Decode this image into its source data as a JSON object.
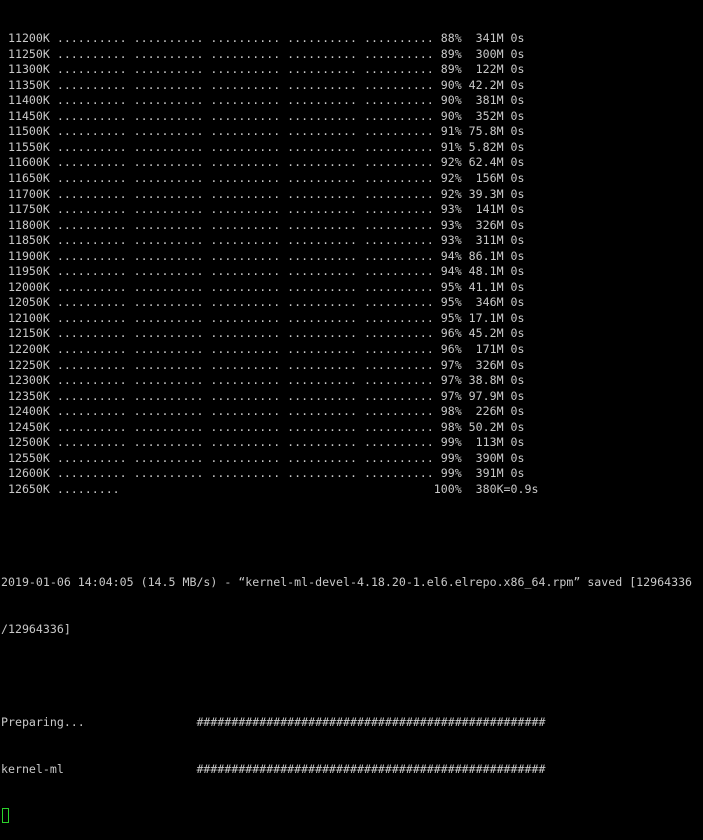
{
  "terminal": {
    "text_color": "#c9c9c9",
    "background": "#000000",
    "cursor_color": "#2bd22b",
    "progress_lines": [
      " 11200K .......... .......... .......... .......... .......... 88%  341M 0s",
      " 11250K .......... .......... .......... .......... .......... 89%  300M 0s",
      " 11300K .......... .......... .......... .......... .......... 89%  122M 0s",
      " 11350K .......... .......... .......... .......... .......... 90% 42.2M 0s",
      " 11400K .......... .......... .......... .......... .......... 90%  381M 0s",
      " 11450K .......... .......... .......... .......... .......... 90%  352M 0s",
      " 11500K .......... .......... .......... .......... .......... 91% 75.8M 0s",
      " 11550K .......... .......... .......... .......... .......... 91% 5.82M 0s",
      " 11600K .......... .......... .......... .......... .......... 92% 62.4M 0s",
      " 11650K .......... .......... .......... .......... .......... 92%  156M 0s",
      " 11700K .......... .......... .......... .......... .......... 92% 39.3M 0s",
      " 11750K .......... .......... .......... .......... .......... 93%  141M 0s",
      " 11800K .......... .......... .......... .......... .......... 93%  326M 0s",
      " 11850K .......... .......... .......... .......... .......... 93%  311M 0s",
      " 11900K .......... .......... .......... .......... .......... 94% 86.1M 0s",
      " 11950K .......... .......... .......... .......... .......... 94% 48.1M 0s",
      " 12000K .......... .......... .......... .......... .......... 95% 41.1M 0s",
      " 12050K .......... .......... .......... .......... .......... 95%  346M 0s",
      " 12100K .......... .......... .......... .......... .......... 95% 17.1M 0s",
      " 12150K .......... .......... .......... .......... .......... 96% 45.2M 0s",
      " 12200K .......... .......... .......... .......... .......... 96%  171M 0s",
      " 12250K .......... .......... .......... .......... .......... 97%  326M 0s",
      " 12300K .......... .......... .......... .......... .......... 97% 38.8M 0s",
      " 12350K .......... .......... .......... .......... .......... 97% 97.9M 0s",
      " 12400K .......... .......... .......... .......... .......... 98%  226M 0s",
      " 12450K .......... .......... .......... .......... .......... 98% 50.2M 0s",
      " 12500K .......... .......... .......... .......... .......... 99%  113M 0s",
      " 12550K .......... .......... .......... .......... .......... 99%  390M 0s",
      " 12600K .......... .......... .......... .......... .......... 99%  391M 0s",
      " 12650K .........                                             100%  380K=0.9s"
    ],
    "saved_line_1": "2019-01-06 14:04:05 (14.5 MB/s) - “kernel-ml-devel-4.18.20-1.el6.elrepo.x86_64.rpm” saved [12964336",
    "saved_line_2": "/12964336]",
    "rpm_lines": [
      "Preparing...                ##################################################",
      "kernel-ml                   ##################################################"
    ]
  }
}
